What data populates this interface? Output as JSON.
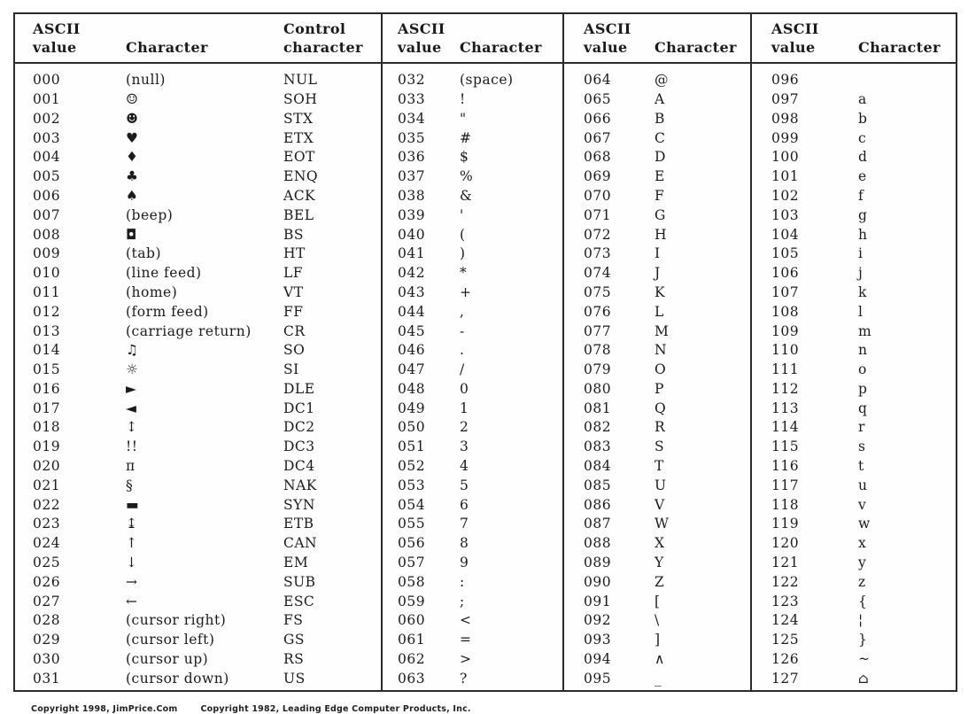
{
  "page": {
    "background": "#ffffff",
    "ink_color": "#1b1b1b",
    "border_color": "#2b2b2b"
  },
  "footer": {
    "copyright_left": "Copyright 1998, JimPrice.Com",
    "copyright_right": "Copyright 1982, Leading Edge Computer Products, Inc."
  },
  "chart_data": {
    "type": "table",
    "sections": [
      {
        "headers": [
          "ASCII\nvalue",
          "Character",
          "Control\ncharacter"
        ],
        "rows": [
          [
            "000",
            "(null)",
            "NUL"
          ],
          [
            "001",
            "☺",
            "SOH"
          ],
          [
            "002",
            "☻",
            "STX"
          ],
          [
            "003",
            "♥",
            "ETX"
          ],
          [
            "004",
            "♦",
            "EOT"
          ],
          [
            "005",
            "♣",
            "ENQ"
          ],
          [
            "006",
            "♠",
            "ACK"
          ],
          [
            "007",
            "(beep)",
            "BEL"
          ],
          [
            "008",
            "◘",
            "BS"
          ],
          [
            "009",
            "(tab)",
            "HT"
          ],
          [
            "010",
            "(line feed)",
            "LF"
          ],
          [
            "011",
            "(home)",
            "VT"
          ],
          [
            "012",
            "(form feed)",
            "FF"
          ],
          [
            "013",
            "(carriage return)",
            "CR"
          ],
          [
            "014",
            "♫",
            "SO"
          ],
          [
            "015",
            "☼",
            "SI"
          ],
          [
            "016",
            "►",
            "DLE"
          ],
          [
            "017",
            "◄",
            "DC1"
          ],
          [
            "018",
            "↕",
            "DC2"
          ],
          [
            "019",
            "!!",
            "DC3"
          ],
          [
            "020",
            "π",
            "DC4"
          ],
          [
            "021",
            "§",
            "NAK"
          ],
          [
            "022",
            "▬",
            "SYN"
          ],
          [
            "023",
            "↨",
            "ETB"
          ],
          [
            "024",
            "↑",
            "CAN"
          ],
          [
            "025",
            "↓",
            "EM"
          ],
          [
            "026",
            "→",
            "SUB"
          ],
          [
            "027",
            "←",
            "ESC"
          ],
          [
            "028",
            "(cursor right)",
            "FS"
          ],
          [
            "029",
            "(cursor left)",
            "GS"
          ],
          [
            "030",
            "(cursor up)",
            "RS"
          ],
          [
            "031",
            "(cursor down)",
            "US"
          ]
        ]
      },
      {
        "headers": [
          "ASCII\nvalue",
          "Character"
        ],
        "rows": [
          [
            "032",
            "(space)"
          ],
          [
            "033",
            "!"
          ],
          [
            "034",
            "\""
          ],
          [
            "035",
            "#"
          ],
          [
            "036",
            "$"
          ],
          [
            "037",
            "%"
          ],
          [
            "038",
            "&"
          ],
          [
            "039",
            "'"
          ],
          [
            "040",
            "("
          ],
          [
            "041",
            ")"
          ],
          [
            "042",
            "*"
          ],
          [
            "043",
            "+"
          ],
          [
            "044",
            ","
          ],
          [
            "045",
            "-"
          ],
          [
            "046",
            "."
          ],
          [
            "047",
            "/"
          ],
          [
            "048",
            "0"
          ],
          [
            "049",
            "1"
          ],
          [
            "050",
            "2"
          ],
          [
            "051",
            "3"
          ],
          [
            "052",
            "4"
          ],
          [
            "053",
            "5"
          ],
          [
            "054",
            "6"
          ],
          [
            "055",
            "7"
          ],
          [
            "056",
            "8"
          ],
          [
            "057",
            "9"
          ],
          [
            "058",
            ":"
          ],
          [
            "059",
            ";"
          ],
          [
            "060",
            "<"
          ],
          [
            "061",
            "="
          ],
          [
            "062",
            ">"
          ],
          [
            "063",
            "?"
          ]
        ]
      },
      {
        "headers": [
          "ASCII\nvalue",
          "Character"
        ],
        "rows": [
          [
            "064",
            "@"
          ],
          [
            "065",
            "A"
          ],
          [
            "066",
            "B"
          ],
          [
            "067",
            "C"
          ],
          [
            "068",
            "D"
          ],
          [
            "069",
            "E"
          ],
          [
            "070",
            "F"
          ],
          [
            "071",
            "G"
          ],
          [
            "072",
            "H"
          ],
          [
            "073",
            "I"
          ],
          [
            "074",
            "J"
          ],
          [
            "075",
            "K"
          ],
          [
            "076",
            "L"
          ],
          [
            "077",
            "M"
          ],
          [
            "078",
            "N"
          ],
          [
            "079",
            "O"
          ],
          [
            "080",
            "P"
          ],
          [
            "081",
            "Q"
          ],
          [
            "082",
            "R"
          ],
          [
            "083",
            "S"
          ],
          [
            "084",
            "T"
          ],
          [
            "085",
            "U"
          ],
          [
            "086",
            "V"
          ],
          [
            "087",
            "W"
          ],
          [
            "088",
            "X"
          ],
          [
            "089",
            "Y"
          ],
          [
            "090",
            "Z"
          ],
          [
            "091",
            "["
          ],
          [
            "092",
            "\\"
          ],
          [
            "093",
            "]"
          ],
          [
            "094",
            "∧"
          ],
          [
            "095",
            "_"
          ]
        ]
      },
      {
        "headers": [
          "ASCII\nvalue",
          "Character"
        ],
        "rows": [
          [
            "096",
            ""
          ],
          [
            "097",
            "a"
          ],
          [
            "098",
            "b"
          ],
          [
            "099",
            "c"
          ],
          [
            "100",
            "d"
          ],
          [
            "101",
            "e"
          ],
          [
            "102",
            "f"
          ],
          [
            "103",
            "g"
          ],
          [
            "104",
            "h"
          ],
          [
            "105",
            "i"
          ],
          [
            "106",
            "j"
          ],
          [
            "107",
            "k"
          ],
          [
            "108",
            "l"
          ],
          [
            "109",
            "m"
          ],
          [
            "110",
            "n"
          ],
          [
            "111",
            "o"
          ],
          [
            "112",
            "p"
          ],
          [
            "113",
            "q"
          ],
          [
            "114",
            "r"
          ],
          [
            "115",
            "s"
          ],
          [
            "116",
            "t"
          ],
          [
            "117",
            "u"
          ],
          [
            "118",
            "v"
          ],
          [
            "119",
            "w"
          ],
          [
            "120",
            "x"
          ],
          [
            "121",
            "y"
          ],
          [
            "122",
            "z"
          ],
          [
            "123",
            "{"
          ],
          [
            "124",
            "¦"
          ],
          [
            "125",
            "}"
          ],
          [
            "126",
            "~"
          ],
          [
            "127",
            "⌂"
          ]
        ]
      }
    ]
  }
}
